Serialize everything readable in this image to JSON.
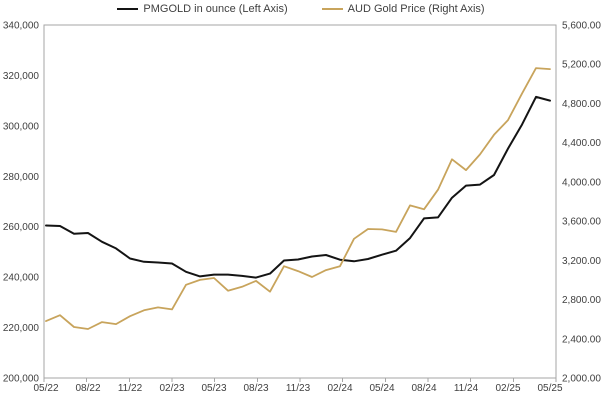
{
  "legend": [
    {
      "label": "PMGOLD in ounce (Left Axis)",
      "color": "#141414"
    },
    {
      "label": "AUD Gold Price (Right Axis)",
      "color": "#c8a45c"
    }
  ],
  "colors": {
    "pmgold_line": "#141414",
    "aud_line": "#c8a45c",
    "axis_border": "#a6a6a6",
    "text": "#404040"
  },
  "chart_data": {
    "type": "line",
    "title": "",
    "x": [
      "05/22",
      "06/22",
      "07/22",
      "08/22",
      "09/22",
      "10/22",
      "11/22",
      "12/22",
      "01/23",
      "02/23",
      "03/23",
      "04/23",
      "05/23",
      "06/23",
      "07/23",
      "08/23",
      "09/23",
      "10/23",
      "11/23",
      "12/23",
      "01/24",
      "02/24",
      "03/24",
      "04/24",
      "05/24",
      "06/24",
      "07/24",
      "08/24",
      "09/24",
      "10/24",
      "11/24",
      "12/24",
      "01/25",
      "02/25",
      "03/25",
      "04/25",
      "05/25"
    ],
    "x_tick_labels": [
      "05/22",
      "08/22",
      "11/22",
      "02/23",
      "05/23",
      "08/23",
      "11/23",
      "02/24",
      "05/24",
      "08/24",
      "11/24",
      "02/25",
      "05/25"
    ],
    "series": [
      {
        "name": "PMGOLD in ounce (Left Axis)",
        "axis": "left",
        "color": "#141414",
        "values": [
          260500,
          260300,
          257200,
          257500,
          254000,
          251400,
          247400,
          246100,
          245800,
          245400,
          242100,
          240300,
          241000,
          241000,
          240500,
          239800,
          241400,
          246600,
          247000,
          248200,
          248800,
          246900,
          246300,
          247200,
          248900,
          250500,
          255500,
          263300,
          263700,
          271500,
          276300,
          276700,
          280500,
          291000,
          300500,
          311500,
          310000
        ]
      },
      {
        "name": "AUD Gold Price (Right Axis)",
        "axis": "right",
        "color": "#c8a45c",
        "values": [
          2580,
          2640,
          2520,
          2500,
          2570,
          2550,
          2630,
          2690,
          2720,
          2700,
          2950,
          3000,
          3020,
          2890,
          2930,
          2990,
          2880,
          3140,
          3090,
          3030,
          3100,
          3140,
          3420,
          3520,
          3515,
          3490,
          3760,
          3720,
          3920,
          4230,
          4120,
          4280,
          4480,
          4630,
          4900,
          5160,
          5150
        ]
      }
    ],
    "left_axis": {
      "min": 200000,
      "max": 340000,
      "step": 20000,
      "tick_labels": [
        "340,000",
        "320,000",
        "300,000",
        "280,000",
        "260,000",
        "240,000",
        "220,000",
        "200,000"
      ]
    },
    "right_axis": {
      "min": 2000,
      "max": 5600,
      "step": 400,
      "tick_labels": [
        "5,600.00",
        "5,200.00",
        "4,800.00",
        "4,400.00",
        "4,000.00",
        "3,600.00",
        "3,200.00",
        "2,800.00",
        "2,400.00",
        "2,000.00"
      ]
    },
    "grid": false,
    "legend_position": "top"
  }
}
